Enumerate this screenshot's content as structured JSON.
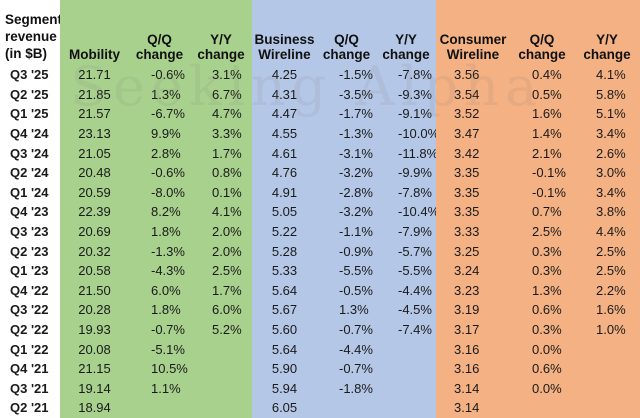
{
  "colors": {
    "mobility": "#a9d18e",
    "wireline": "#b4c7e7",
    "consumer": "#f4b183"
  },
  "headers": {
    "label": "Segment revenue (in $B)",
    "mobility": "Mobility",
    "mob_qq": "Q/Q change",
    "mob_yy": "Y/Y change",
    "bw": "Business Wireline",
    "bw_qq": "Q/Q change",
    "bw_yy": "Y/Y change",
    "cw": "Consumer Wireline",
    "cw_qq": "Q/Q change",
    "cw_yy": "Y/Y change"
  },
  "rows": [
    [
      "Q3 '25",
      "21.71",
      "-0.6%",
      "3.1%",
      "4.25",
      "-1.5%",
      "-7.8%",
      "3.56",
      "0.4%",
      "4.1%"
    ],
    [
      "Q2 '25",
      "21.85",
      "1.3%",
      "6.7%",
      "4.31",
      "-3.5%",
      "-9.3%",
      "3.54",
      "0.5%",
      "5.8%"
    ],
    [
      "Q1 '25",
      "21.57",
      "-6.7%",
      "4.7%",
      "4.47",
      "-1.7%",
      "-9.1%",
      "3.52",
      "1.6%",
      "5.1%"
    ],
    [
      "Q4 '24",
      "23.13",
      "9.9%",
      "3.3%",
      "4.55",
      "-1.3%",
      "-10.0%",
      "3.47",
      "1.4%",
      "3.4%"
    ],
    [
      "Q3 '24",
      "21.05",
      "2.8%",
      "1.7%",
      "4.61",
      "-3.1%",
      "-11.8%",
      "3.42",
      "2.1%",
      "2.6%"
    ],
    [
      "Q2 '24",
      "20.48",
      "-0.6%",
      "0.8%",
      "4.76",
      "-3.2%",
      "-9.9%",
      "3.35",
      "-0.1%",
      "3.0%"
    ],
    [
      "Q1 '24",
      "20.59",
      "-8.0%",
      "0.1%",
      "4.91",
      "-2.8%",
      "-7.8%",
      "3.35",
      "-0.1%",
      "3.4%"
    ],
    [
      "Q4 '23",
      "22.39",
      "8.2%",
      "4.1%",
      "5.05",
      "-3.2%",
      "-10.4%",
      "3.35",
      "0.7%",
      "3.8%"
    ],
    [
      "Q3 '23",
      "20.69",
      "1.8%",
      "2.0%",
      "5.22",
      "-1.1%",
      "-7.9%",
      "3.33",
      "2.5%",
      "4.4%"
    ],
    [
      "Q2 '23",
      "20.32",
      "-1.3%",
      "2.0%",
      "5.28",
      "-0.9%",
      "-5.7%",
      "3.25",
      "0.3%",
      "2.5%"
    ],
    [
      "Q1 '23",
      "20.58",
      "-4.3%",
      "2.5%",
      "5.33",
      "-5.5%",
      "-5.5%",
      "3.24",
      "0.3%",
      "2.5%"
    ],
    [
      "Q4 '22",
      "21.50",
      "6.0%",
      "1.7%",
      "5.64",
      "-0.5%",
      "-4.4%",
      "3.23",
      "1.3%",
      "2.2%"
    ],
    [
      "Q3 '22",
      "20.28",
      "1.8%",
      "6.0%",
      "5.67",
      "1.3%",
      "-4.5%",
      "3.19",
      "0.6%",
      "1.6%"
    ],
    [
      "Q2 '22",
      "19.93",
      "-0.7%",
      "5.2%",
      "5.60",
      "-0.7%",
      "-7.4%",
      "3.17",
      "0.3%",
      "1.0%"
    ],
    [
      "Q1 '22",
      "20.08",
      "-5.1%",
      "",
      "5.64",
      "-4.4%",
      "",
      "3.16",
      "0.0%",
      ""
    ],
    [
      "Q4 '21",
      "21.15",
      "10.5%",
      "",
      "5.90",
      "-0.7%",
      "",
      "3.16",
      "0.6%",
      ""
    ],
    [
      "Q3 '21",
      "19.14",
      "1.1%",
      "",
      "5.94",
      "-1.8%",
      "",
      "3.14",
      "0.0%",
      ""
    ],
    [
      "Q2 '21",
      "18.94",
      "",
      "",
      "6.05",
      "",
      "",
      "3.14",
      "",
      ""
    ]
  ]
}
